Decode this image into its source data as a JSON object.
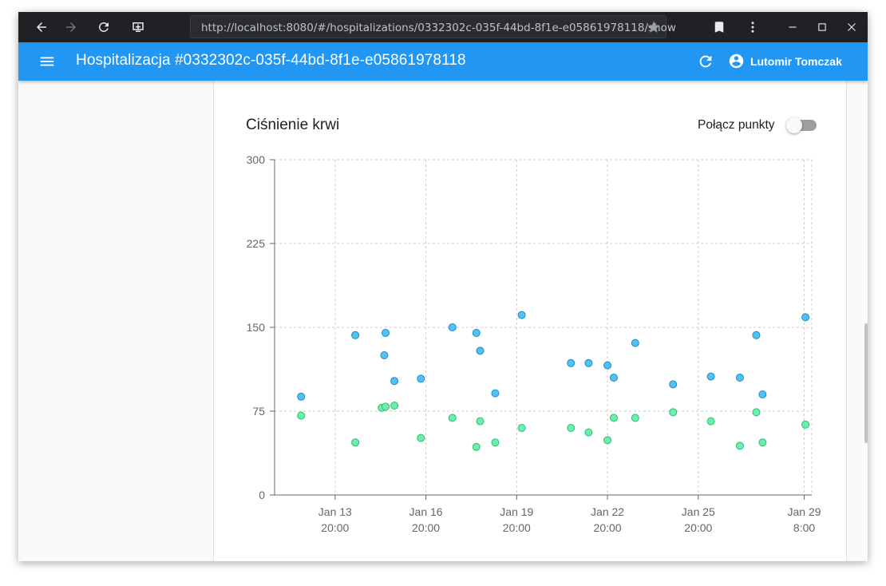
{
  "browser": {
    "url": "http://localhost:8080/#/hospitalizations/0332302c-035f-44bd-8f1e-e05861978118/show"
  },
  "app_bar": {
    "title": "Hospitalizacja #0332302c-035f-44bd-8f1e-e05861978118",
    "user_name": "Lutomir Tomczak",
    "background": "#2196f3"
  },
  "card": {
    "title": "Ciśnienie krwi",
    "toggle_label": "Połącz punkty",
    "toggle_on": false
  },
  "chart_data": {
    "type": "scatter",
    "title": "",
    "xlabel": "",
    "ylabel": "",
    "ylim": [
      0,
      300
    ],
    "y_ticks": [
      "0",
      "75",
      "150",
      "225",
      "300"
    ],
    "x_ticks": [
      {
        "label": [
          "Jan 13",
          "20:00"
        ],
        "at": "Jan 13 20:00"
      },
      {
        "label": [
          "Jan 16",
          "20:00"
        ],
        "at": "Jan 16 20:00"
      },
      {
        "label": [
          "Jan 19",
          "20:00"
        ],
        "at": "Jan 19 20:00"
      },
      {
        "label": [
          "Jan 22",
          "20:00"
        ],
        "at": "Jan 22 20:00"
      },
      {
        "label": [
          "Jan 25",
          "20:00"
        ],
        "at": "Jan 25 20:00"
      },
      {
        "label": [
          "Jan 29",
          "8:00"
        ],
        "at": "Jan 29 08:00"
      }
    ],
    "xlim": [
      "Jan 11 20:00",
      "Jan 29 14:00"
    ],
    "grid": true,
    "series": [
      {
        "color": "#4fc3f7",
        "points": [
          [
            "Jan 12 17:00",
            88
          ],
          [
            "Jan 14 12:00",
            143
          ],
          [
            "Jan 15 11:00",
            125
          ],
          [
            "Jan 15 12:00",
            145
          ],
          [
            "Jan 15 19:00",
            102
          ],
          [
            "Jan 16 16:00",
            104
          ],
          [
            "Jan 17 17:00",
            150
          ],
          [
            "Jan 18 12:00",
            145
          ],
          [
            "Jan 18 15:00",
            129
          ],
          [
            "Jan 19 03:00",
            91
          ],
          [
            "Jan 20 00:00",
            161
          ],
          [
            "Jan 21 15:00",
            118
          ],
          [
            "Jan 22 05:00",
            118
          ],
          [
            "Jan 22 20:00",
            116
          ],
          [
            "Jan 23 01:00",
            105
          ],
          [
            "Jan 23 18:00",
            136
          ],
          [
            "Jan 25 00:00",
            99
          ],
          [
            "Jan 26 06:00",
            106
          ],
          [
            "Jan 27 05:00",
            105
          ],
          [
            "Jan 27 18:00",
            143
          ],
          [
            "Jan 27 23:00",
            90
          ],
          [
            "Jan 29 09:00",
            159
          ]
        ]
      },
      {
        "color": "#69f0ae",
        "points": [
          [
            "Jan 12 17:00",
            71
          ],
          [
            "Jan 14 12:00",
            47
          ],
          [
            "Jan 15 09:00",
            78
          ],
          [
            "Jan 15 12:00",
            79
          ],
          [
            "Jan 15 19:00",
            80
          ],
          [
            "Jan 16 16:00",
            51
          ],
          [
            "Jan 17 17:00",
            69
          ],
          [
            "Jan 18 12:00",
            43
          ],
          [
            "Jan 18 15:00",
            66
          ],
          [
            "Jan 19 03:00",
            47
          ],
          [
            "Jan 20 00:00",
            60
          ],
          [
            "Jan 21 15:00",
            60
          ],
          [
            "Jan 22 05:00",
            56
          ],
          [
            "Jan 22 20:00",
            49
          ],
          [
            "Jan 23 01:00",
            69
          ],
          [
            "Jan 23 18:00",
            69
          ],
          [
            "Jan 25 00:00",
            74
          ],
          [
            "Jan 26 06:00",
            66
          ],
          [
            "Jan 27 05:00",
            44
          ],
          [
            "Jan 27 18:00",
            74
          ],
          [
            "Jan 27 23:00",
            47
          ],
          [
            "Jan 29 09:00",
            63
          ]
        ]
      }
    ]
  }
}
